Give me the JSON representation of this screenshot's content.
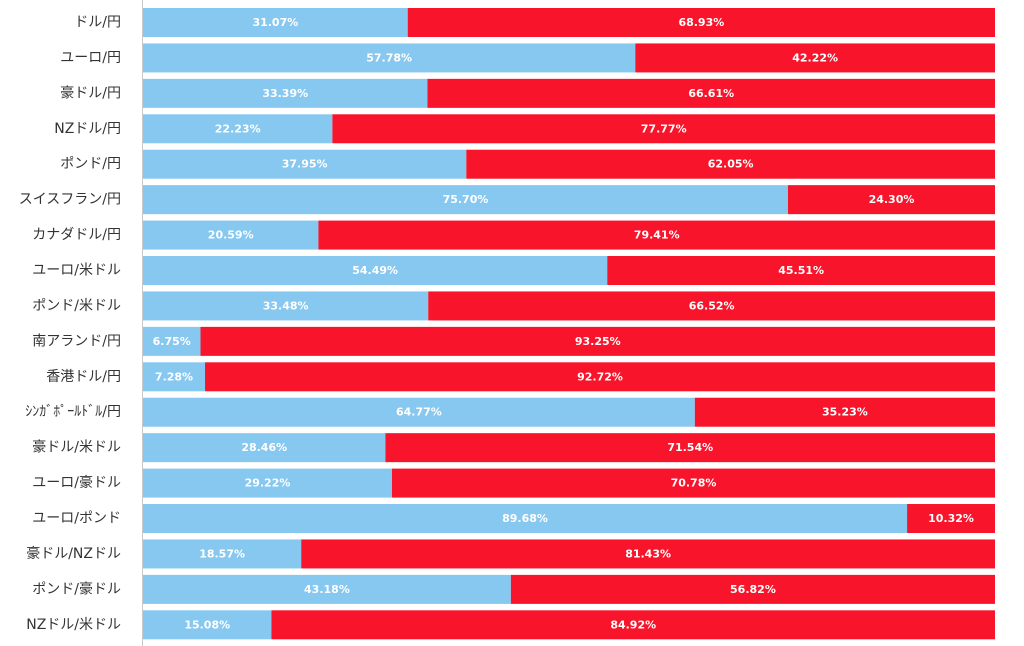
{
  "chart_data": {
    "type": "bar",
    "orientation": "horizontal",
    "stacked": true,
    "percent_stacked": true,
    "categories": [
      "ドル/円",
      "ユーロ/円",
      "豪ドル/円",
      "NZドル/円",
      "ポンド/円",
      "スイスフラン/円",
      "カナダドル/円",
      "ユーロ/米ドル",
      "ポンド/米ドル",
      "南アランド/円",
      "香港ドル/円",
      "ｼﾝｶﾞﾎﾟｰﾙﾄﾞﾙ/円",
      "豪ドル/米ドル",
      "ユーロ/豪ドル",
      "ユーロ/ポンド",
      "豪ドル/NZドル",
      "ポンド/豪ドル",
      "NZドル/米ドル"
    ],
    "series": [
      {
        "color": "#87c8f0",
        "label_color": "#ffffff",
        "values": [
          31.07,
          57.78,
          33.39,
          22.23,
          37.95,
          75.7,
          20.59,
          54.49,
          33.48,
          6.75,
          7.28,
          64.77,
          28.46,
          29.22,
          89.68,
          18.57,
          43.18,
          15.08
        ],
        "labels": [
          "31.07%",
          "57.78%",
          "33.39%",
          "22.23%",
          "37.95%",
          "75.70%",
          "20.59%",
          "54.49%",
          "33.48%",
          "6.75%",
          "7.28%",
          "64.77%",
          "28.46%",
          "29.22%",
          "89.68%",
          "18.57%",
          "43.18%",
          "15.08%"
        ]
      },
      {
        "color": "#f8142a",
        "label_color": "#ffffff",
        "values": [
          68.93,
          42.22,
          66.61,
          77.77,
          62.05,
          24.3,
          79.41,
          45.51,
          66.52,
          93.25,
          92.72,
          35.23,
          71.54,
          70.78,
          10.32,
          81.43,
          56.82,
          84.92
        ],
        "labels": [
          "68.93%",
          "42.22%",
          "66.61%",
          "77.77%",
          "62.05%",
          "24.30%",
          "79.41%",
          "45.51%",
          "66.52%",
          "93.25%",
          "92.72%",
          "35.23%",
          "71.54%",
          "70.78%",
          "10.32%",
          "81.43%",
          "56.82%",
          "84.92%"
        ]
      }
    ],
    "xlim": [
      0,
      100
    ],
    "grid": false,
    "legend": "none",
    "axis_color": "#c8c8c8"
  }
}
